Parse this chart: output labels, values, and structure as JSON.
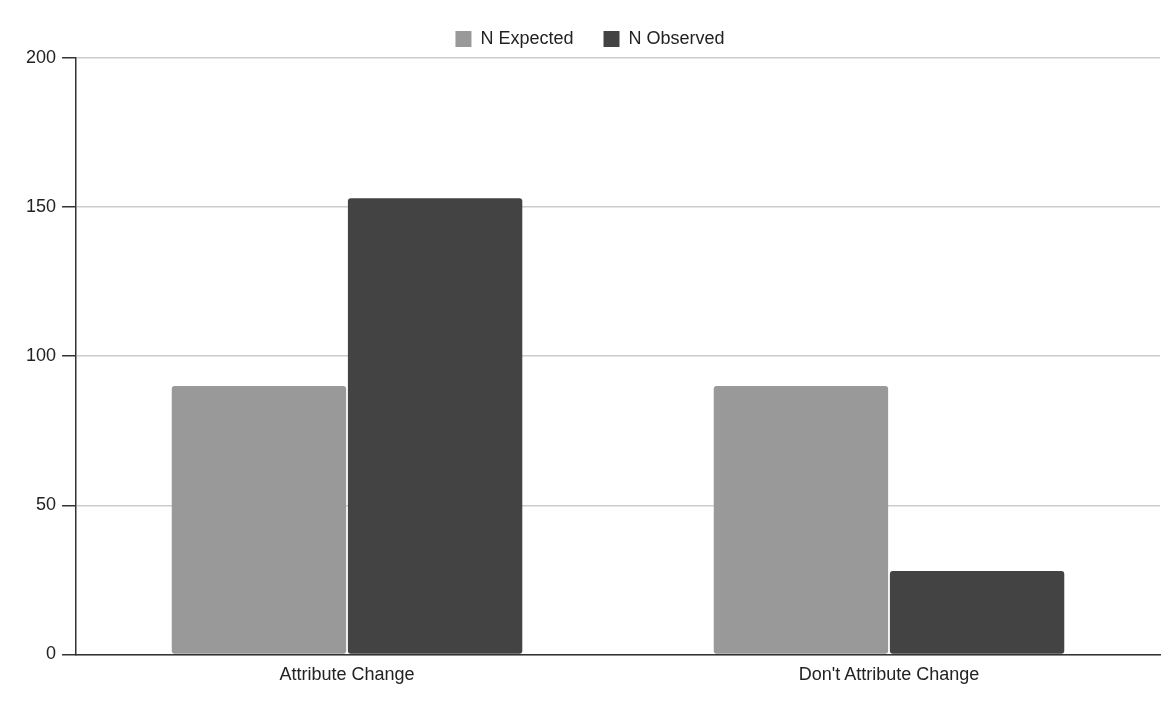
{
  "chart_data": {
    "type": "bar",
    "categories": [
      "Attribute Change",
      "Don't Attribute Change"
    ],
    "series": [
      {
        "name": "N Expected",
        "color": "#999999",
        "values": [
          90,
          90
        ]
      },
      {
        "name": "N Observed",
        "color": "#434343",
        "values": [
          153,
          28
        ]
      }
    ],
    "ylim": [
      0,
      200
    ],
    "yticks": [
      0,
      50,
      100,
      150,
      200
    ],
    "grid": "y",
    "legend": "top"
  }
}
